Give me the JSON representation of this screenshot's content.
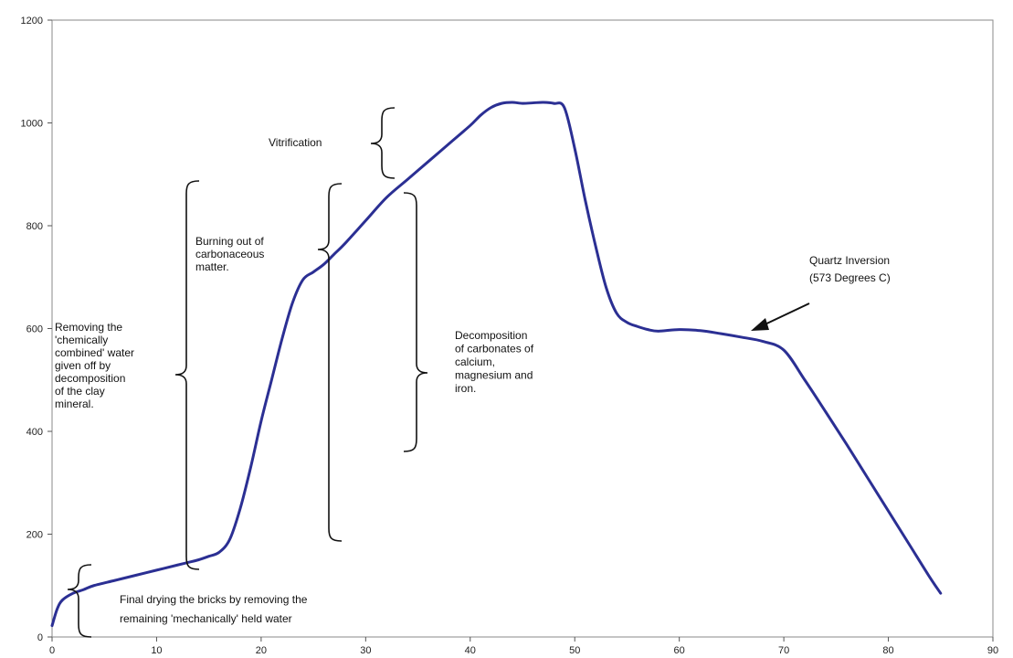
{
  "chart_data": {
    "type": "line",
    "title": "",
    "xlabel": "",
    "ylabel": "",
    "xlim": [
      0,
      90
    ],
    "ylim": [
      0,
      1200
    ],
    "x_ticks": [
      "0",
      "10",
      "20",
      "30",
      "40",
      "50",
      "60",
      "70",
      "80",
      "90"
    ],
    "y_ticks": [
      "0",
      "200",
      "400",
      "600",
      "800",
      "1000",
      "1200"
    ],
    "grid": false,
    "line_color": "#2b2f93",
    "series": [
      {
        "x": [
          0,
          0.5,
          1,
          2,
          3,
          4,
          6,
          8,
          10,
          12,
          13,
          14,
          15,
          16,
          17,
          18,
          19,
          20,
          21,
          22,
          23,
          24,
          25,
          26,
          27,
          28,
          30,
          32,
          34,
          36,
          38,
          40,
          41,
          42,
          43,
          44,
          45,
          46,
          47,
          48,
          49,
          50,
          51,
          52,
          53,
          54,
          55,
          56,
          57,
          58,
          60,
          62,
          64,
          66,
          68,
          70,
          72,
          74,
          76,
          78,
          80,
          82,
          84,
          85
        ],
        "y": [
          22,
          55,
          72,
          85,
          92,
          100,
          110,
          120,
          130,
          140,
          145,
          150,
          157,
          165,
          190,
          250,
          330,
          420,
          500,
          580,
          650,
          695,
          710,
          725,
          745,
          765,
          810,
          855,
          890,
          925,
          960,
          995,
          1015,
          1030,
          1038,
          1040,
          1038,
          1039,
          1040,
          1038,
          1030,
          950,
          850,
          760,
          680,
          630,
          612,
          604,
          598,
          595,
          598,
          596,
          590,
          583,
          575,
          558,
          500,
          438,
          375,
          310,
          245,
          180,
          115,
          85
        ]
      }
    ],
    "annotations": [
      "Vitrification",
      "Burning out of carbonaceous matter.",
      "Removing the 'chemically combined' water given off by decomposition of the clay mineral.",
      "Decomposition of carbonates of calcium, magnesium and iron.",
      "Quartz Inversion (573 Degrees C)",
      "Final drying the bricks by removing the remaining 'mechanically' held water"
    ]
  },
  "labels": {
    "vitrification": [
      "Vitrification"
    ],
    "burning": [
      "Burning out of",
      "carbonaceous",
      "matter."
    ],
    "removing": [
      "Removing the",
      "'chemically",
      "combined' water",
      "given off by",
      "decomposition",
      "of the clay",
      "mineral."
    ],
    "decomposition": [
      "Decomposition",
      "of carbonates of",
      "calcium,",
      "magnesium and",
      "iron."
    ],
    "quartz": [
      "Quartz Inversion",
      "(573 Degrees C)"
    ],
    "drying": [
      "Final drying the bricks by removing the",
      "remaining 'mechanically' held water"
    ]
  }
}
